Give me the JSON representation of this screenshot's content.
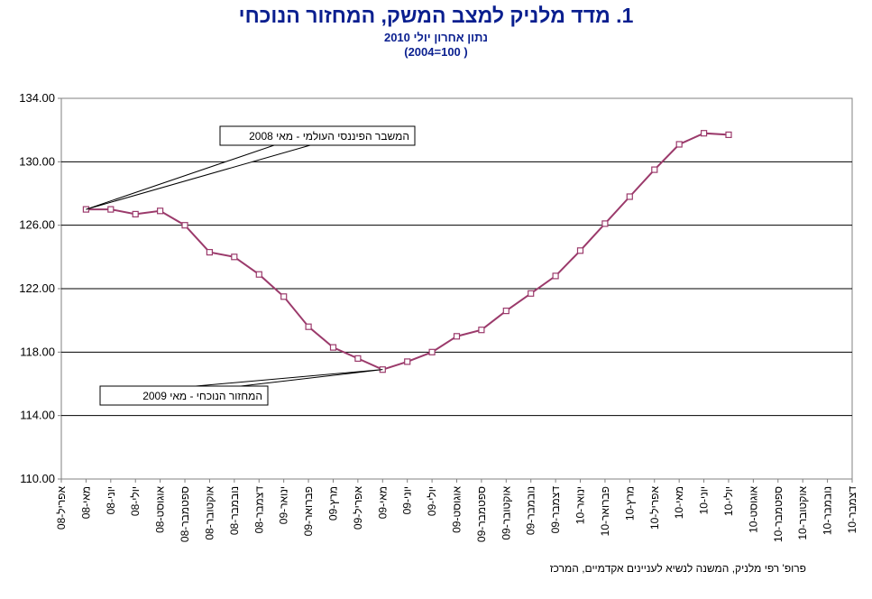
{
  "chart_data": {
    "type": "line",
    "title": "1.  מדד מלניק למצב המשק, המחזור הנוכחי",
    "subtitle": "נתון אחרון יולי 2010",
    "subtitle2": "(2004=100 )",
    "source": "פרופ' רפי מלניק, המשנה לנשיא לעניינים אקדמיים, המרכז",
    "ylim": [
      110,
      134
    ],
    "yticks": [
      "110.00",
      "114.00",
      "118.00",
      "122.00",
      "126.00",
      "130.00",
      "134.00"
    ],
    "ytick_values": [
      110,
      114,
      118,
      122,
      126,
      130,
      134
    ],
    "grid": true,
    "categories": [
      "אפריל-08",
      "מאי-08",
      "יוני-08",
      "יולי-08",
      "אוגוסט-08",
      "ספטמבר-08",
      "אוקטובר-08",
      "נובמבר-08",
      "דצמבר-08",
      "ינואר-09",
      "פברואר-09",
      "מרץ-09",
      "אפריל-09",
      "מאי-09",
      "יוני-09",
      "יולי-09",
      "אוגוסט-09",
      "ספטמבר-09",
      "אוקטובר-09",
      "נובמבר-09",
      "דצמבר-09",
      "ינואר-10",
      "פברואר-10",
      "מרץ-10",
      "אפריל-10",
      "מאי-10",
      "יוני-10",
      "יולי-10",
      "אוגוסט-10",
      "ספטמבר-10",
      "אוקטובר-10",
      "נובמבר-10",
      "דצמבר-10"
    ],
    "series": [
      {
        "name": "מדד מלניק",
        "color": "#9b3a6b",
        "values": [
          null,
          127.0,
          127.0,
          126.7,
          126.9,
          126.0,
          124.3,
          124.0,
          122.9,
          121.5,
          119.6,
          118.3,
          117.6,
          116.9,
          117.4,
          118.0,
          119.0,
          119.4,
          120.6,
          121.7,
          122.8,
          124.4,
          126.1,
          127.8,
          129.5,
          131.1,
          131.8,
          131.7,
          null,
          null,
          null,
          null,
          null
        ]
      }
    ],
    "annotations": [
      {
        "text": "המשבר הפיננסי העולמי  - מאי 2008",
        "point_category": "מאי-08",
        "point_value": 127.0
      },
      {
        "text": "המחזור הנוכחי  - מאי 2009",
        "point_category": "מאי-09",
        "point_value": 116.9
      }
    ]
  }
}
